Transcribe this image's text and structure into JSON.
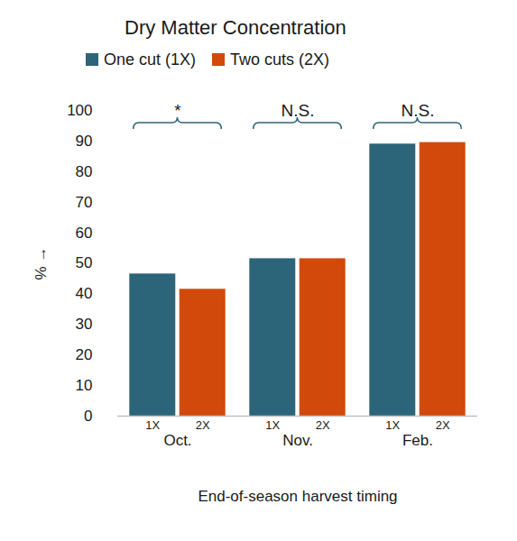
{
  "chart_data": {
    "type": "bar",
    "title": "Dry Matter Concentration",
    "xlabel": "End-of-season harvest timing",
    "ylabel": "%",
    "categories": [
      "Oct.",
      "Nov.",
      "Feb."
    ],
    "bar_labels": [
      "1X",
      "2X"
    ],
    "annotations": [
      "*",
      "N.S.",
      "N.S."
    ],
    "series": [
      {
        "name": "One cut (1X)",
        "color": "#2c6479",
        "values": [
          46.5,
          51.5,
          89
        ]
      },
      {
        "name": "Two cuts (2X)",
        "color": "#d14a0b",
        "values": [
          41.5,
          51.5,
          89.5
        ]
      }
    ],
    "ylim": [
      0,
      100
    ],
    "yticks": [
      0,
      10,
      20,
      30,
      40,
      50,
      60,
      70,
      80,
      90,
      100
    ],
    "grid": false,
    "legend": "top",
    "data_labels": false
  }
}
